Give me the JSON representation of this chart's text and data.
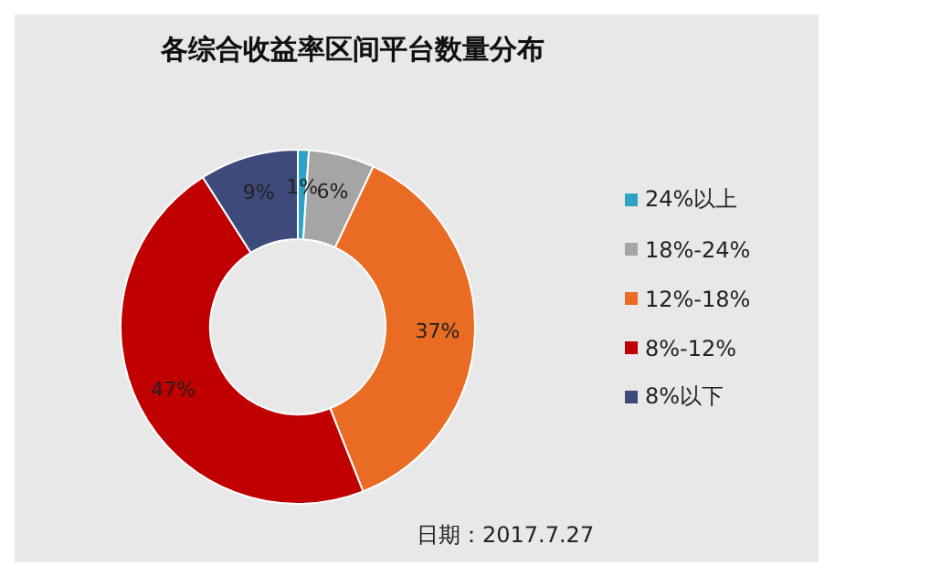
{
  "chart_data": {
    "type": "donut",
    "title": "各综合收益率区间平台数量分布",
    "categories": [
      "24%以上",
      "18%-24%",
      "12%-18%",
      "8%-12%",
      "8%以下"
    ],
    "values": [
      1,
      6,
      37,
      47,
      9
    ],
    "value_labels": [
      "1%",
      "6%",
      "37%",
      "47%",
      "9%"
    ],
    "colors": [
      "#2ea3c4",
      "#a5a5a5",
      "#ea6b24",
      "#c00000",
      "#3f4a7c"
    ],
    "legend": "right",
    "annotations": [
      "日期：2017.7.27"
    ]
  }
}
